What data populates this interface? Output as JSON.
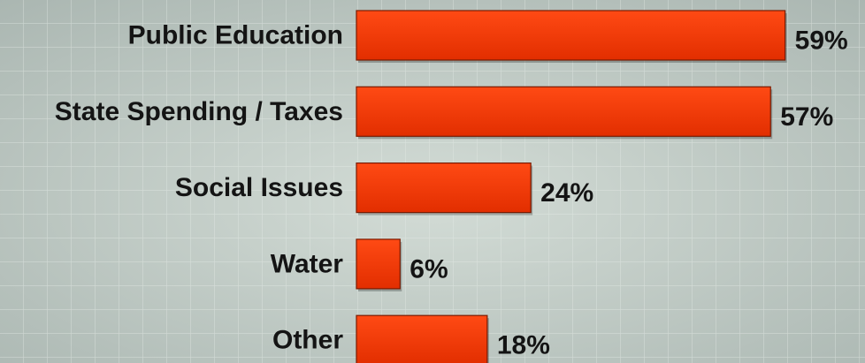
{
  "chart_data": {
    "type": "bar",
    "orientation": "horizontal",
    "categories": [
      "Public Education",
      "State Spending / Taxes",
      "Social Issues",
      "Water",
      "Other"
    ],
    "values": [
      59,
      57,
      24,
      6,
      18
    ],
    "value_labels": [
      "59%",
      "57%",
      "24%",
      "6%",
      "18%"
    ],
    "color": "#f23300",
    "xlim": [
      0,
      70
    ]
  }
}
